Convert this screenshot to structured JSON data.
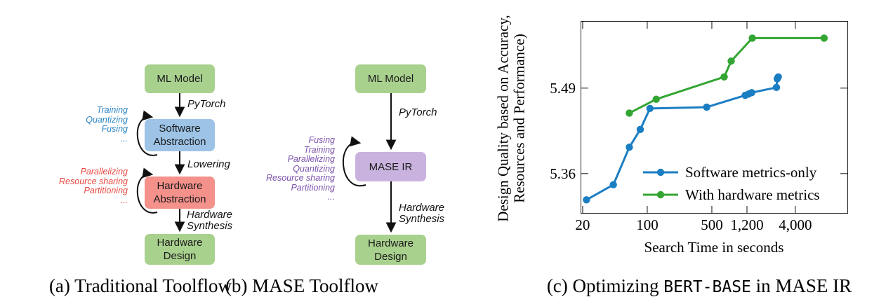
{
  "colors": {
    "green_box": "#a9d18e",
    "blue_box": "#9dc3e6",
    "red_box": "#f4918b",
    "purple_box": "#c9b3de",
    "blue_text": "#2e86c5",
    "red_text": "#e8473f",
    "purple_text": "#7b52ad",
    "axis": "#222",
    "tick": "#555"
  },
  "diagram_a": {
    "caption": "(a) Traditional Toolflow",
    "boxes": {
      "ml_model": "ML Model",
      "software_abstraction": "Software\nAbstraction",
      "hardware_abstraction": "Hardware\nAbstraction",
      "hardware_design": "Hardware\nDesign"
    },
    "edge_labels": {
      "pytorch": "PyTorch",
      "lowering": "Lowering",
      "hardware_synthesis": "Hardware\nSynthesis"
    },
    "software_loop_ops": "Training\nQuantizing\nFusing\n...",
    "hardware_loop_ops": "Parallelizing\nResource sharing\nPartitioning\n..."
  },
  "diagram_b": {
    "caption": "(b) MASE Toolflow",
    "boxes": {
      "ml_model": "ML Model",
      "mase_ir": "MASE IR",
      "hardware_design": "Hardware\nDesign"
    },
    "edge_labels": {
      "pytorch": "PyTorch",
      "hardware_synthesis": "Hardware\nSynthesis"
    },
    "loop_ops": "Fusing\nTraining\nParallelizing\nQuantizing\nResource sharing\nPartitioning\n..."
  },
  "chart": {
    "caption": {
      "prefix": "(c) Optimizing ",
      "code": "BERT-BASE",
      "suffix": " in MASE IR"
    },
    "ylabel": "Design Quality based on Accuracy,\nResources and Performance)",
    "xlabel": "Search Time in seconds"
  },
  "chart_data": {
    "type": "line",
    "title": "(c) Optimizing BERT-BASE in MASE IR",
    "xlabel": "Search Time in seconds",
    "ylabel": "Design Quality based on Accuracy, Resources and Performance)",
    "x_scale": "log",
    "x_range": [
      19,
      14900
    ],
    "y_range": [
      5.299,
      5.592
    ],
    "grid": false,
    "legend_position": "lower right",
    "x_ticks": {
      "values": [
        20,
        100,
        500,
        1200,
        4000
      ],
      "labels": [
        "20",
        "100",
        "500",
        "1,200",
        "4,000"
      ]
    },
    "y_ticks": {
      "values": [
        5.36,
        5.49
      ],
      "labels": [
        "5.36",
        "5.49"
      ]
    },
    "series": [
      {
        "name": "Software metrics-only",
        "color": "#1b7ec3",
        "points": [
          [
            22,
            5.32
          ],
          [
            43,
            5.343
          ],
          [
            64,
            5.4
          ],
          [
            84,
            5.427
          ],
          [
            107,
            5.459
          ],
          [
            440,
            5.461
          ],
          [
            1150,
            5.479
          ],
          [
            1250,
            5.481
          ],
          [
            1350,
            5.483
          ],
          [
            2500,
            5.491
          ],
          [
            2550,
            5.504
          ],
          [
            2620,
            5.507
          ]
        ]
      },
      {
        "name": "With hardware metrics",
        "color": "#33a532",
        "points": [
          [
            64,
            5.452
          ],
          [
            125,
            5.473
          ],
          [
            680,
            5.507
          ],
          [
            810,
            5.531
          ],
          [
            1370,
            5.566
          ],
          [
            8200,
            5.566
          ]
        ]
      }
    ]
  }
}
